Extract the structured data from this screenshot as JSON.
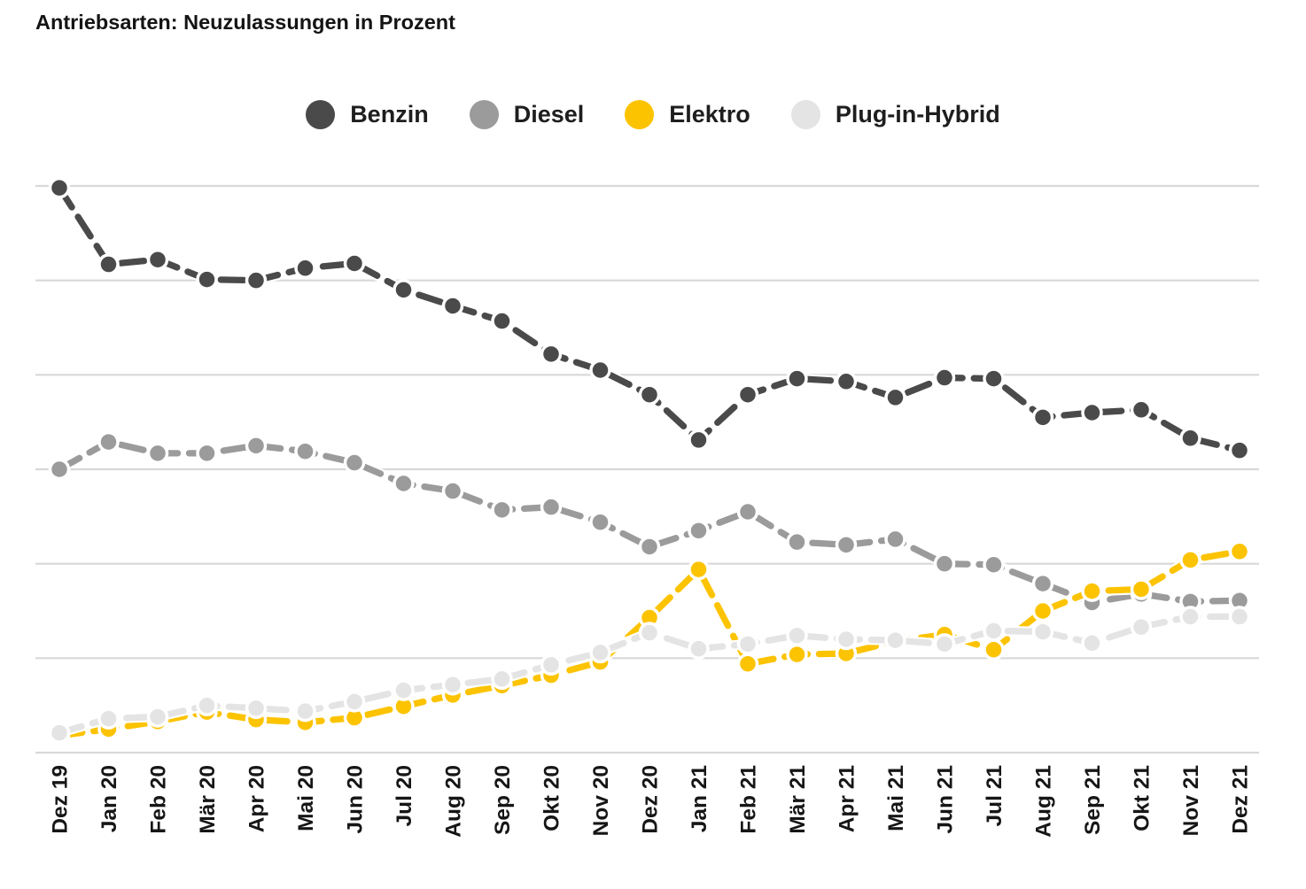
{
  "page": {
    "title": "Antriebsarten: Neuzulassungen in Prozent"
  },
  "chart_data": {
    "type": "line",
    "title": "Antriebsarten: Neuzulassungen in Prozent",
    "unit": "percent",
    "x": [
      "Dez 19",
      "Jan 20",
      "Feb 20",
      "Mär 20",
      "Apr 20",
      "Mai 20",
      "Jun 20",
      "Jul 20",
      "Aug 20",
      "Sep 20",
      "Okt 20",
      "Nov 20",
      "Dez 20",
      "Jan 21",
      "Feb 21",
      "Mär 21",
      "Apr 21",
      "Mai 21",
      "Jun 21",
      "Jul 21",
      "Aug 21",
      "Sep 21",
      "Okt 21",
      "Nov 21",
      "Dez 21"
    ],
    "series": [
      {
        "name": "Benzin",
        "color": "#4a4a4a",
        "values": [
          59.8,
          51.7,
          52.2,
          50.1,
          50.0,
          51.3,
          51.8,
          49.0,
          47.3,
          45.7,
          42.2,
          40.5,
          37.9,
          33.1,
          37.9,
          39.6,
          39.3,
          37.6,
          39.7,
          39.6,
          35.5,
          36.0,
          36.3,
          33.3,
          32.0
        ]
      },
      {
        "name": "Diesel",
        "color": "#9b9b9b",
        "values": [
          30.0,
          32.9,
          31.7,
          31.7,
          32.5,
          31.9,
          30.7,
          28.5,
          27.7,
          25.7,
          26.0,
          24.4,
          21.8,
          23.5,
          25.5,
          22.3,
          22.0,
          22.6,
          20.0,
          19.9,
          17.9,
          15.9,
          16.8,
          16.0,
          16.1
        ]
      },
      {
        "name": "Elektro",
        "color": "#fcc301",
        "values": [
          1.8,
          2.5,
          3.3,
          4.3,
          3.5,
          3.2,
          3.7,
          4.9,
          6.1,
          7.1,
          8.2,
          9.6,
          14.3,
          19.4,
          9.4,
          10.4,
          10.5,
          11.8,
          12.5,
          10.9,
          15.0,
          17.1,
          17.3,
          20.4,
          21.3
        ]
      },
      {
        "name": "Plug-in-Hybrid",
        "color": "#e4e4e4",
        "values": [
          2.1,
          3.6,
          3.8,
          5.0,
          4.7,
          4.4,
          5.4,
          6.6,
          7.2,
          7.8,
          9.3,
          10.6,
          12.7,
          11.0,
          11.5,
          12.4,
          12.0,
          11.9,
          11.5,
          12.9,
          12.8,
          11.6,
          13.3,
          14.4,
          14.4
        ]
      }
    ],
    "ylim": [
      0,
      60
    ],
    "gridline_step": 10,
    "grid": "horizontal",
    "grid_color": "#d8d8d8",
    "legend_position": "top-center",
    "y_axis_labels_visible": false
  }
}
